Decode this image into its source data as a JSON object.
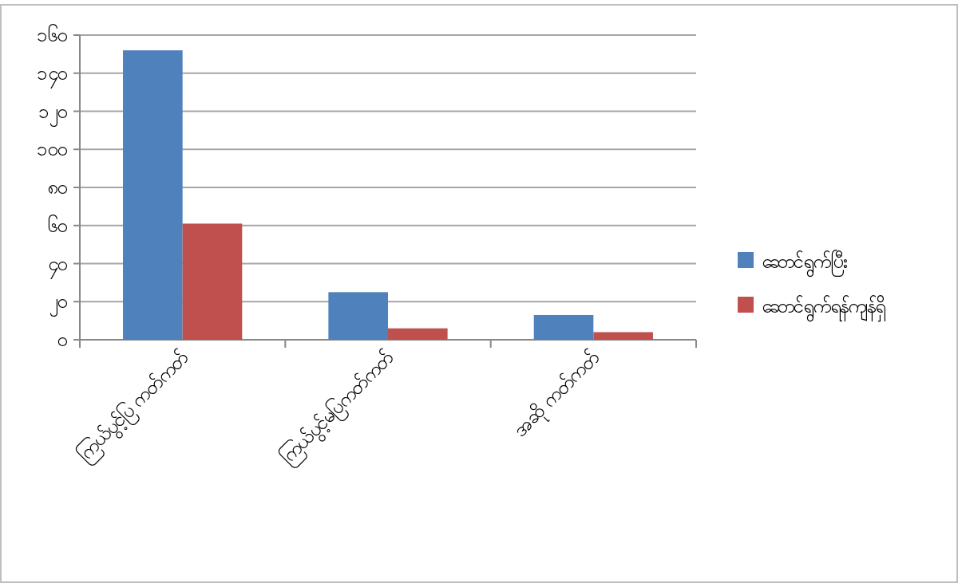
{
  "chart_data": {
    "type": "bar",
    "categories": [
      "ကြယ်ပွင့်ပြ ကတ်ကတ်",
      "ကြယ်ပွင့်မပြကတ်ကတ်",
      "အဆို ကတ်ကတ်"
    ],
    "series": [
      {
        "name": "ဆောင်ရွက်ပြီး",
        "color": "#4f81bd",
        "values": [
          152,
          25,
          13
        ]
      },
      {
        "name": "ဆောင်ရွက်ရန်ကျန်ရှိ",
        "color": "#c0504d",
        "values": [
          61,
          6,
          4
        ]
      }
    ],
    "ylim": [
      0,
      160
    ],
    "yticks": [
      {
        "value": 0,
        "label": "၀"
      },
      {
        "value": 20,
        "label": "၂၀"
      },
      {
        "value": 40,
        "label": "၄၀"
      },
      {
        "value": 60,
        "label": "၆၀"
      },
      {
        "value": 80,
        "label": "၈၀"
      },
      {
        "value": 100,
        "label": "၁၀၀"
      },
      {
        "value": 120,
        "label": "၁၂၀"
      },
      {
        "value": 140,
        "label": "၁၄၀"
      },
      {
        "value": 160,
        "label": "၁၆၀"
      }
    ],
    "grid": "y",
    "legend": "right"
  }
}
